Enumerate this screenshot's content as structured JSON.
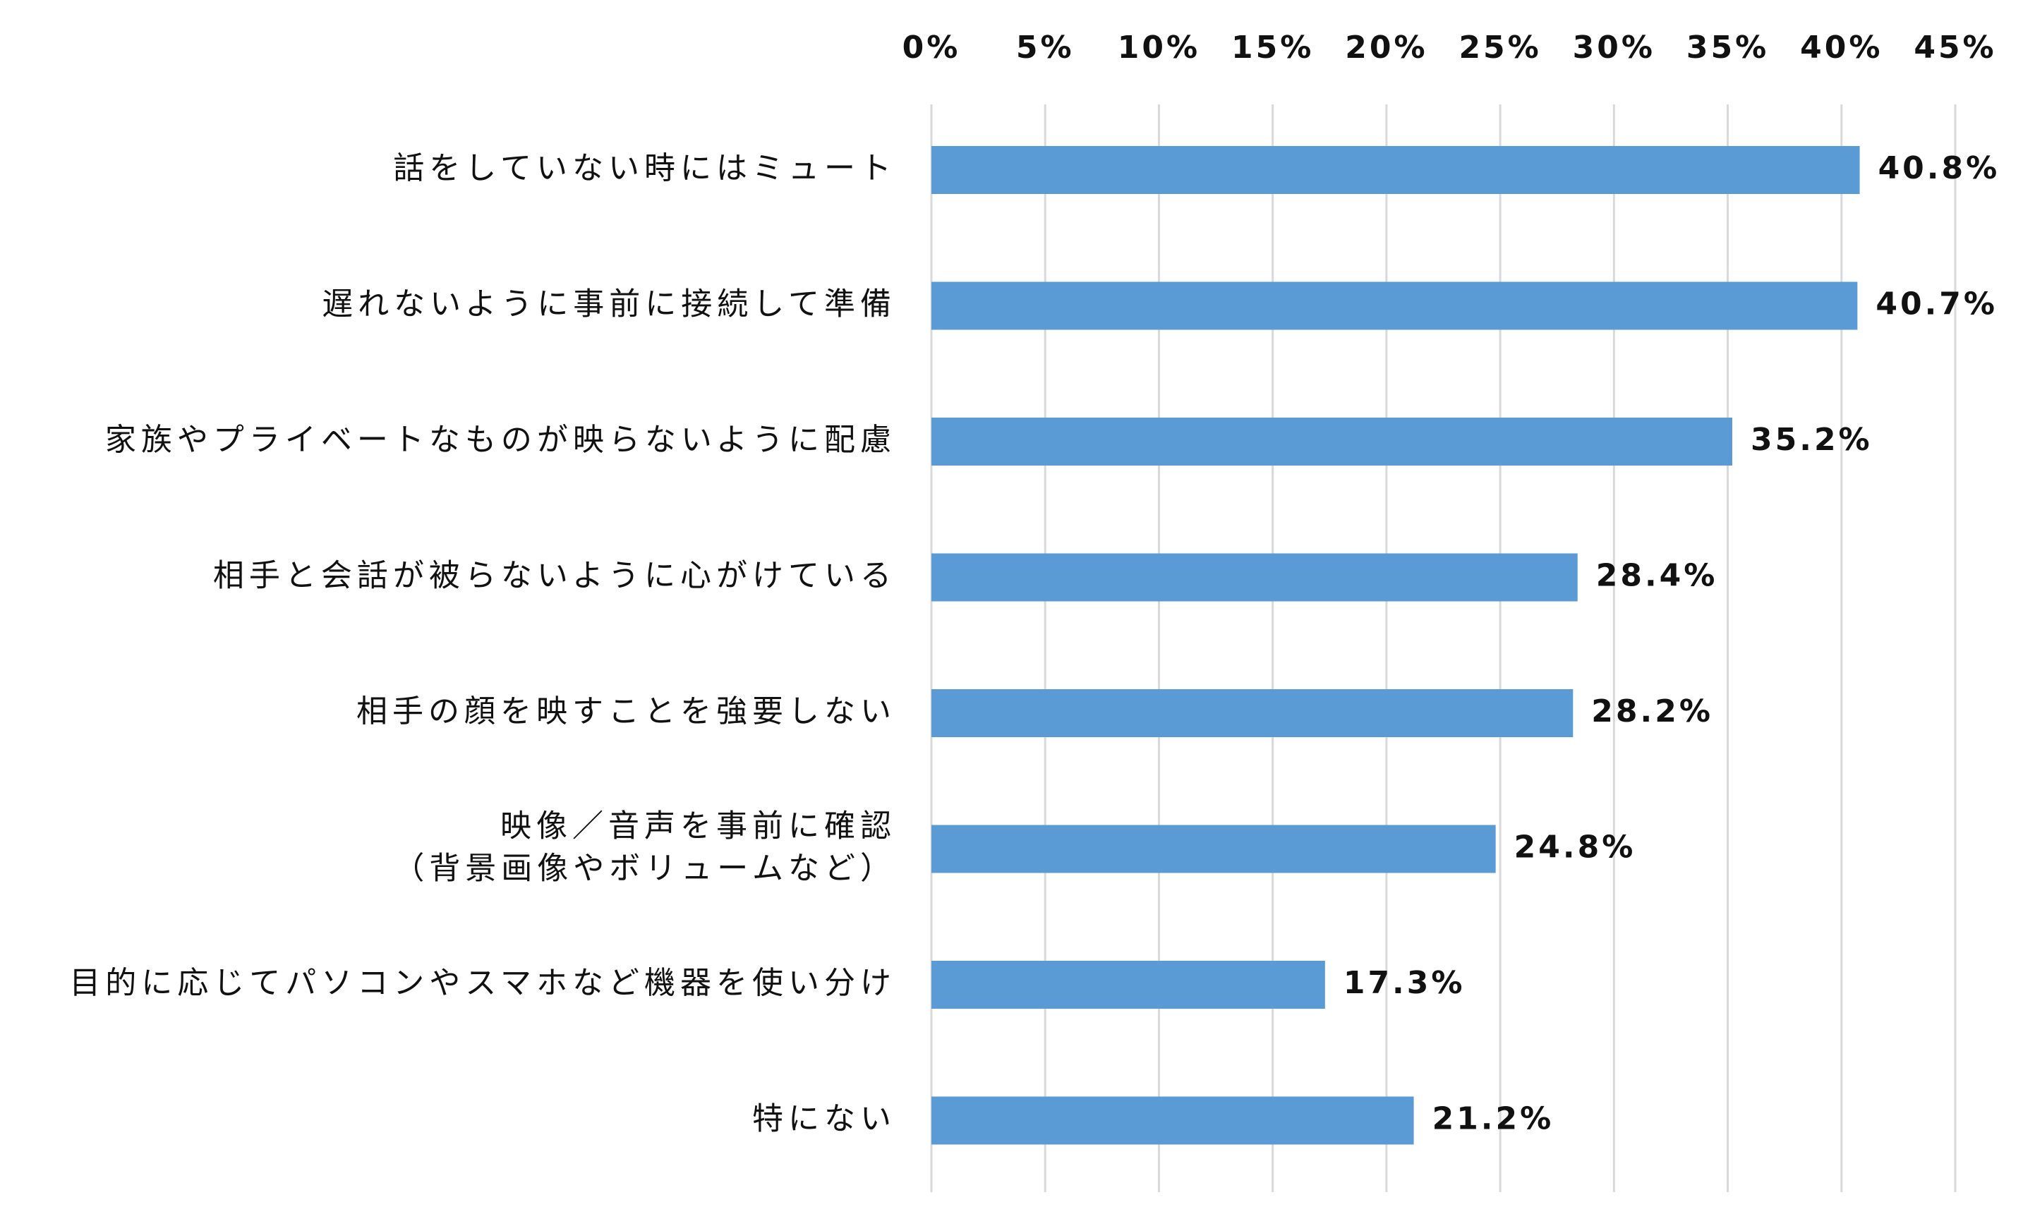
{
  "chart_data": {
    "type": "bar",
    "orientation": "horizontal",
    "title": "",
    "xlabel": "",
    "ylabel": "",
    "xlim": [
      0,
      45
    ],
    "x_tick_values": [
      0,
      5,
      10,
      15,
      20,
      25,
      30,
      35,
      40,
      45
    ],
    "x_tick_labels": [
      "0%",
      "5%",
      "10%",
      "15%",
      "20%",
      "25%",
      "30%",
      "35%",
      "40%",
      "45%"
    ],
    "x_axis_position": "top",
    "grid": true,
    "legend": "none",
    "bar_color": "#5b9bd5",
    "categories": [
      [
        "話をしていない時にはミュート"
      ],
      [
        "遅れないように事前に接続して準備"
      ],
      [
        "家族やプライベートなものが映らないように配慮"
      ],
      [
        "相手と会話が被らないように心がけている"
      ],
      [
        "相手の顔を映すことを強要しない"
      ],
      [
        "映像／音声を事前に確認",
        "（背景画像やボリュームなど）"
      ],
      [
        "目的に応じてパソコンやスマホなど機器を使い分け"
      ],
      [
        "特にない"
      ]
    ],
    "values": [
      40.8,
      40.7,
      35.2,
      28.4,
      28.2,
      24.8,
      17.3,
      21.2
    ],
    "value_labels": [
      "40.8%",
      "40.7%",
      "35.2%",
      "28.4%",
      "28.2%",
      "24.8%",
      "17.3%",
      "21.2%"
    ]
  }
}
